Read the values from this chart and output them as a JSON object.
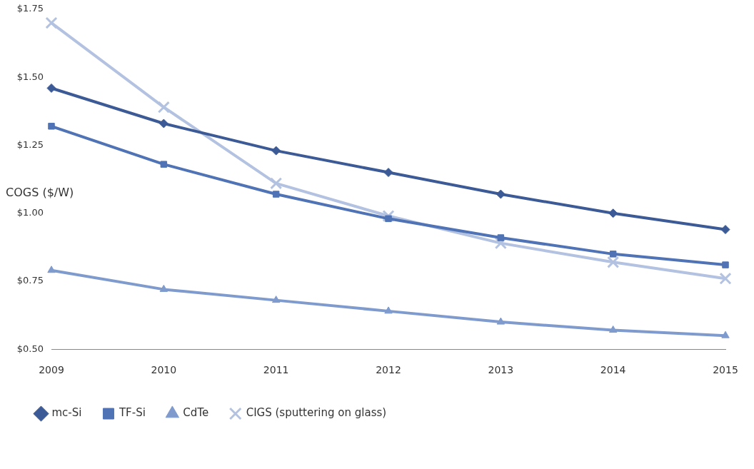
{
  "chart_data": {
    "type": "line",
    "ylabel": "COGS ($/W)",
    "categories": [
      "2009",
      "2010",
      "2011",
      "2012",
      "2013",
      "2014",
      "2015"
    ],
    "series": [
      {
        "name": "mc-Si",
        "color": "#3c5a96",
        "marker": "diamond",
        "values": [
          1.46,
          1.33,
          1.23,
          1.15,
          1.07,
          1.0,
          0.94
        ]
      },
      {
        "name": "TF-Si",
        "color": "#4f73b5",
        "marker": "square",
        "values": [
          1.32,
          1.18,
          1.07,
          0.98,
          0.91,
          0.85,
          0.81
        ]
      },
      {
        "name": "CdTe",
        "color": "#7f9bcd",
        "marker": "triangle",
        "values": [
          0.79,
          0.72,
          0.68,
          0.64,
          0.6,
          0.57,
          0.55
        ]
      },
      {
        "name": "CIGS (sputtering on glass)",
        "color": "#b3c2e0",
        "marker": "cross",
        "values": [
          1.7,
          1.39,
          1.11,
          0.99,
          0.89,
          0.82,
          0.76
        ]
      }
    ],
    "ylim": [
      0.5,
      1.75
    ],
    "yticks": [
      {
        "value": 0.5,
        "label": "$0.50"
      },
      {
        "value": 0.75,
        "label": "$0.75"
      },
      {
        "value": 1,
        "label": "$1.00"
      },
      {
        "value": 1.25,
        "label": "$1.25"
      },
      {
        "value": 1.5,
        "label": "$1.50"
      },
      {
        "value": 1.75,
        "label": "$1.75"
      }
    ],
    "grid": false,
    "legend": "bottom",
    "line_style": "solid"
  }
}
